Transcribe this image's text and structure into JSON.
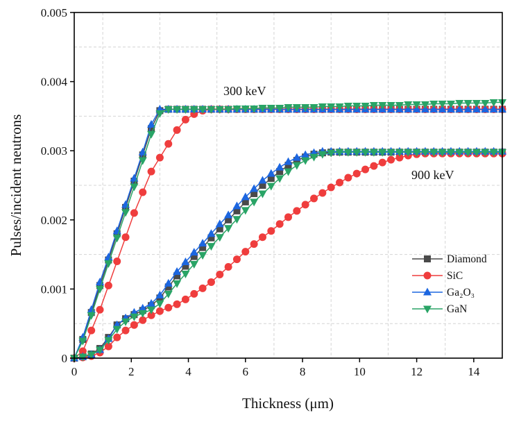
{
  "chart_data": {
    "type": "line",
    "title": "",
    "xlabel": "Thickness (μm)",
    "ylabel": "Pulses/incident neutrons",
    "xlim": [
      0,
      15
    ],
    "ylim": [
      0,
      0.005
    ],
    "x_ticks": [
      "0",
      "2",
      "4",
      "6",
      "8",
      "10",
      "12",
      "14"
    ],
    "y_ticks": [
      "0",
      "0.001",
      "0.002",
      "0.003",
      "0.004",
      "0.005"
    ],
    "grid": "dashed, at minor intervals",
    "legend_position": "right, lower-middle",
    "annotations": [
      "300 keV",
      "900 keV"
    ],
    "x": [
      0,
      0.3,
      0.6,
      0.9,
      1.2,
      1.5,
      1.8,
      2.1,
      2.4,
      2.7,
      3.0,
      3.3,
      3.6,
      3.9,
      4.2,
      4.5,
      4.8,
      5.1,
      5.4,
      5.7,
      6.0,
      6.3,
      6.6,
      6.9,
      7.2,
      7.5,
      7.8,
      8.1,
      8.4,
      8.7,
      9.0,
      9.3,
      9.6,
      9.9,
      10.2,
      10.5,
      10.8,
      11.1,
      11.4,
      11.7,
      12.0,
      12.3,
      12.6,
      12.9,
      13.2,
      13.5,
      13.8,
      14.1,
      14.4,
      14.7,
      15.0
    ],
    "series": [
      {
        "name": "Diamond",
        "color": "#4a4a4a",
        "marker": "square",
        "groups": {
          "300 keV": [
            0,
            0.00027,
            0.00066,
            0.00105,
            0.00142,
            0.0018,
            0.00218,
            0.00256,
            0.00294,
            0.00332,
            0.00358,
            0.0036,
            0.0036,
            0.0036,
            0.0036,
            0.0036,
            0.0036,
            0.0036,
            0.0036,
            0.0036,
            0.0036,
            0.0036,
            0.0036,
            0.0036,
            0.0036,
            0.0036,
            0.0036,
            0.0036,
            0.0036,
            0.0036,
            0.0036,
            0.0036,
            0.0036,
            0.0036,
            0.0036,
            0.0036,
            0.0036,
            0.0036,
            0.0036,
            0.0036,
            0.0036,
            0.0036,
            0.0036,
            0.0036,
            0.0036,
            0.0036,
            0.0036,
            0.0036,
            0.0036,
            0.0036,
            0.0036
          ],
          "900 keV": [
            0,
            2e-05,
            6e-05,
            0.00014,
            0.0003,
            0.00048,
            0.00057,
            0.00063,
            0.00069,
            0.00076,
            0.00087,
            0.00103,
            0.00119,
            0.00133,
            0.00147,
            0.0016,
            0.00174,
            0.00187,
            0.002,
            0.00213,
            0.00226,
            0.00238,
            0.0025,
            0.0026,
            0.0027,
            0.00279,
            0.00286,
            0.00291,
            0.00295,
            0.00297,
            0.00298,
            0.00298,
            0.00298,
            0.00298,
            0.00298,
            0.00298,
            0.00298,
            0.00298,
            0.00298,
            0.00298,
            0.00298,
            0.00298,
            0.00298,
            0.00298,
            0.00298,
            0.00298,
            0.00298,
            0.00298,
            0.00298,
            0.00298,
            0.00298
          ]
        }
      },
      {
        "name": "SiC",
        "color": "#ef3d3d",
        "marker": "circle",
        "groups": {
          "300 keV": [
            0,
            0.0001,
            0.0004,
            0.0007,
            0.00105,
            0.0014,
            0.00175,
            0.0021,
            0.0024,
            0.0027,
            0.0029,
            0.0031,
            0.0033,
            0.00345,
            0.00353,
            0.00358,
            0.0036,
            0.0036,
            0.0036,
            0.0036,
            0.0036,
            0.0036,
            0.0036,
            0.0036,
            0.0036,
            0.0036,
            0.0036,
            0.0036,
            0.0036,
            0.0036,
            0.0036,
            0.0036,
            0.0036,
            0.0036,
            0.0036,
            0.0036,
            0.0036,
            0.0036,
            0.0036,
            0.0036,
            0.0036,
            0.0036,
            0.0036,
            0.0036,
            0.0036,
            0.0036,
            0.0036,
            0.0036,
            0.0036,
            0.0036,
            0.0036
          ],
          "900 keV": [
            0,
            1e-05,
            3e-05,
            8e-05,
            0.00017,
            0.0003,
            0.0004,
            0.00048,
            0.00055,
            0.00062,
            0.00068,
            0.00073,
            0.00078,
            0.00085,
            0.00093,
            0.00101,
            0.0011,
            0.00121,
            0.00132,
            0.00143,
            0.00154,
            0.00165,
            0.00175,
            0.00184,
            0.00194,
            0.00204,
            0.00213,
            0.00222,
            0.00231,
            0.00239,
            0.00247,
            0.00254,
            0.00261,
            0.00267,
            0.00273,
            0.00278,
            0.00283,
            0.00287,
            0.0029,
            0.00293,
            0.00295,
            0.00296,
            0.00296,
            0.00296,
            0.00296,
            0.00296,
            0.00296,
            0.00296,
            0.00296,
            0.00296,
            0.00296
          ]
        }
      },
      {
        "name": "Ga₂O₃",
        "color": "#1c66e0",
        "marker": "triangle-up",
        "groups": {
          "300 keV": [
            0,
            0.0003,
            0.0007,
            0.0011,
            0.00146,
            0.00184,
            0.00222,
            0.0026,
            0.00298,
            0.00338,
            0.0036,
            0.0036,
            0.0036,
            0.0036,
            0.0036,
            0.0036,
            0.0036,
            0.0036,
            0.0036,
            0.0036,
            0.0036,
            0.0036,
            0.0036,
            0.0036,
            0.0036,
            0.0036,
            0.0036,
            0.0036,
            0.0036,
            0.0036,
            0.0036,
            0.0036,
            0.0036,
            0.0036,
            0.0036,
            0.0036,
            0.0036,
            0.0036,
            0.0036,
            0.0036,
            0.0036,
            0.0036,
            0.0036,
            0.0036,
            0.0036,
            0.0036,
            0.0036,
            0.0036,
            0.0036,
            0.0036,
            0.0036
          ],
          "900 keV": [
            0,
            2e-05,
            5e-05,
            0.00012,
            0.00028,
            0.00048,
            0.00058,
            0.00066,
            0.00072,
            0.00079,
            0.00091,
            0.00108,
            0.00125,
            0.00139,
            0.00153,
            0.00166,
            0.0018,
            0.00194,
            0.00207,
            0.0022,
            0.00233,
            0.00245,
            0.00257,
            0.00267,
            0.00276,
            0.00284,
            0.0029,
            0.00294,
            0.00297,
            0.00299,
            0.00299,
            0.00299,
            0.00299,
            0.00299,
            0.00299,
            0.00299,
            0.00299,
            0.00299,
            0.00299,
            0.00299,
            0.00299,
            0.00299,
            0.00299,
            0.00299,
            0.00299,
            0.00299,
            0.00299,
            0.00299,
            0.00299,
            0.00299,
            0.00299
          ]
        }
      },
      {
        "name": "GaN",
        "color": "#29a466",
        "marker": "triangle-down",
        "groups": {
          "300 keV": [
            0,
            0.00025,
            0.00062,
            0.001,
            0.00137,
            0.00174,
            0.00211,
            0.00248,
            0.00286,
            0.00324,
            0.00354,
            0.0036,
            0.0036,
            0.0036,
            0.0036,
            0.0036,
            0.0036,
            0.0036,
            0.0036,
            0.00361,
            0.00361,
            0.00361,
            0.00362,
            0.00362,
            0.00362,
            0.00363,
            0.00363,
            0.00363,
            0.00363,
            0.00364,
            0.00364,
            0.00364,
            0.00365,
            0.00365,
            0.00365,
            0.00366,
            0.00366,
            0.00366,
            0.00366,
            0.00367,
            0.00367,
            0.00367,
            0.00368,
            0.00368,
            0.00368,
            0.00369,
            0.00369,
            0.00369,
            0.00369,
            0.0037,
            0.0037
          ],
          "900 keV": [
            0,
            2e-05,
            5e-05,
            0.00012,
            0.00026,
            0.00042,
            0.00053,
            0.0006,
            0.00065,
            0.0007,
            0.00079,
            0.00093,
            0.00108,
            0.00122,
            0.00136,
            0.00149,
            0.00162,
            0.00175,
            0.00188,
            0.00201,
            0.00214,
            0.00226,
            0.00238,
            0.00249,
            0.0026,
            0.0027,
            0.00279,
            0.00286,
            0.00291,
            0.00295,
            0.00297,
            0.00298,
            0.00298,
            0.00298,
            0.00298,
            0.00298,
            0.00298,
            0.00298,
            0.00298,
            0.00298,
            0.00298,
            0.00298,
            0.00298,
            0.00298,
            0.00298,
            0.00298,
            0.00298,
            0.00298,
            0.00298,
            0.00298,
            0.00298
          ]
        }
      }
    ]
  }
}
